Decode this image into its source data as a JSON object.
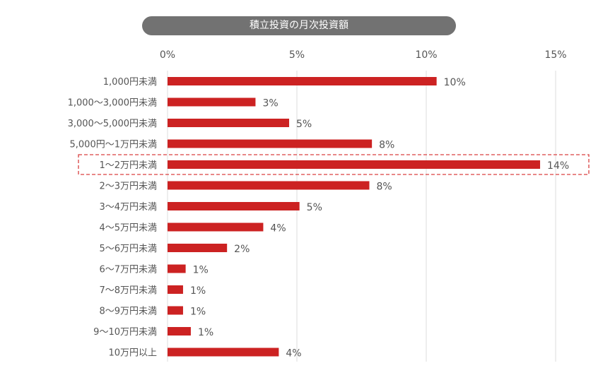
{
  "chart_data": {
    "type": "bar",
    "orientation": "horizontal",
    "title": "積立投資の月次投資額",
    "categories": [
      "1,000円未満",
      "1,000〜3,000円未満",
      "3,000〜5,000円未満",
      "5,000円〜1万円未満",
      "1〜2万円未満",
      "2〜3万円未満",
      "3〜4万円未満",
      "4〜5万円未満",
      "5〜6万円未満",
      "6〜7万円未満",
      "7〜8万円未満",
      "8〜9万円未満",
      "9〜10万円未満",
      "10万円以上"
    ],
    "values": [
      10.4,
      3.4,
      4.7,
      7.9,
      14.4,
      7.8,
      5.1,
      3.7,
      2.3,
      0.7,
      0.6,
      0.6,
      0.9,
      4.3
    ],
    "data_labels": [
      "10%",
      "3%",
      "5%",
      "8%",
      "14%",
      "8%",
      "5%",
      "4%",
      "2%",
      "1%",
      "1%",
      "1%",
      "1%",
      "4%"
    ],
    "xticks": [
      0,
      5,
      10,
      15
    ],
    "xtick_labels": [
      "0%",
      "5%",
      "10%",
      "15%"
    ],
    "xlim": [
      0,
      15.7
    ],
    "xaxis_position": "top",
    "grid": true,
    "highlighted_category": "1〜2万円未満",
    "colors": {
      "bar": "#cc2222",
      "highlight_border": "#d94040",
      "title_bg": "#727272",
      "grid": "#dddddd"
    }
  }
}
